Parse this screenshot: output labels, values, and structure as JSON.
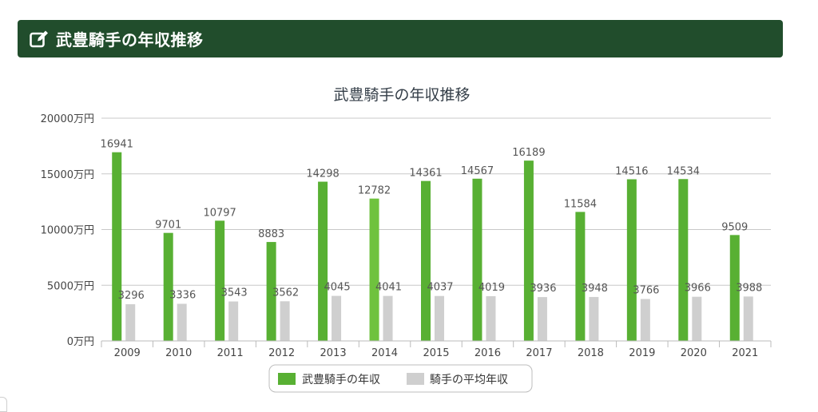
{
  "header": {
    "title": "武豊騎手の年収推移",
    "icon": "edit-icon"
  },
  "colors": {
    "header_bg": "#214d2c",
    "series_main": "#58b033",
    "series_main_light": "#6fc23e",
    "series_avg": "#cfcfcf",
    "grid": "#c8c8c8"
  },
  "chart_data": {
    "type": "bar",
    "title": "武豊騎手の年収推移",
    "categories": [
      "2009",
      "2010",
      "2011",
      "2012",
      "2013",
      "2014",
      "2015",
      "2016",
      "2017",
      "2018",
      "2019",
      "2020",
      "2021"
    ],
    "series": [
      {
        "name": "武豊騎手の年収",
        "values": [
          16941,
          9701,
          10797,
          8883,
          14298,
          12782,
          14361,
          14567,
          16189,
          11584,
          14516,
          14534,
          9509
        ]
      },
      {
        "name": "騎手の平均年収",
        "values": [
          3296,
          3336,
          3543,
          3562,
          4045,
          4041,
          4037,
          4019,
          3936,
          3948,
          3766,
          3966,
          3988
        ]
      }
    ],
    "ylim": [
      0,
      20000
    ],
    "yticks": [
      0,
      5000,
      10000,
      15000,
      20000
    ],
    "ytick_suffix": "万円",
    "grid": true,
    "legend_position": "bottom-center"
  }
}
